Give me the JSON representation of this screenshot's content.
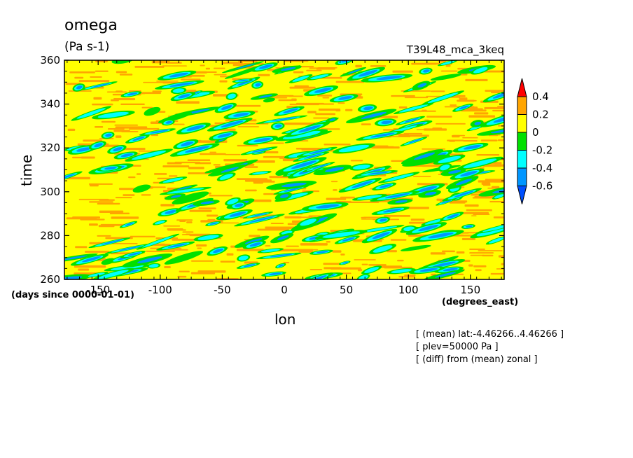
{
  "title": "omega",
  "units": "(Pa s-1)",
  "run_name": "T39L48_mca_3keq",
  "notes": [
    "[ (mean) lat:-4.46266..4.46266 ]",
    "[ plev=50000 Pa ]",
    "[ (diff) from (mean) zonal ]"
  ],
  "colors": {
    "above_0.4": "#ff0000",
    "0.2_to_0.4": "#ffa500",
    "0_to_0.2": "#ffff00",
    "-0.2_to_0": "#00e000",
    "-0.4_to_-0.2": "#00ffff",
    "-0.6_to_-0.4": "#0096ff",
    "below_-0.6": "#0050ff"
  },
  "chart_data": {
    "type": "heatmap",
    "title": "omega",
    "units": "(Pa s-1)",
    "xlabel": "lon",
    "ylabel": "time",
    "x_units": "(degrees_east)",
    "y_units": "(days since 0000-01-01)",
    "xlim": [
      -177.1875,
      177.1875
    ],
    "ylim": [
      260,
      360
    ],
    "x_ticks": [
      -150,
      -100,
      -50,
      0,
      50,
      100,
      150
    ],
    "x_tick_labels": [
      "-150",
      "-100",
      "-50",
      "0",
      "50",
      "100",
      "150"
    ],
    "y_ticks": [
      260,
      280,
      300,
      320,
      340,
      360
    ],
    "y_tick_labels": [
      "260",
      "280",
      "300",
      "320",
      "340",
      "360"
    ],
    "colorbar": {
      "levels": [
        -0.6,
        -0.4,
        -0.2,
        0,
        0.2,
        0.4
      ],
      "labels": [
        "-0.6",
        "-0.4",
        "-0.2",
        "0",
        "0.2",
        "0.4"
      ],
      "colors": [
        "#0050ff",
        "#0096ff",
        "#00ffff",
        "#00e000",
        "#ffff00",
        "#ffa500",
        "#ff0000"
      ],
      "extend": "both"
    },
    "pattern": "eastward-propagating streaks of negative omega (upward motion) scattered over a mostly slightly-positive field"
  }
}
